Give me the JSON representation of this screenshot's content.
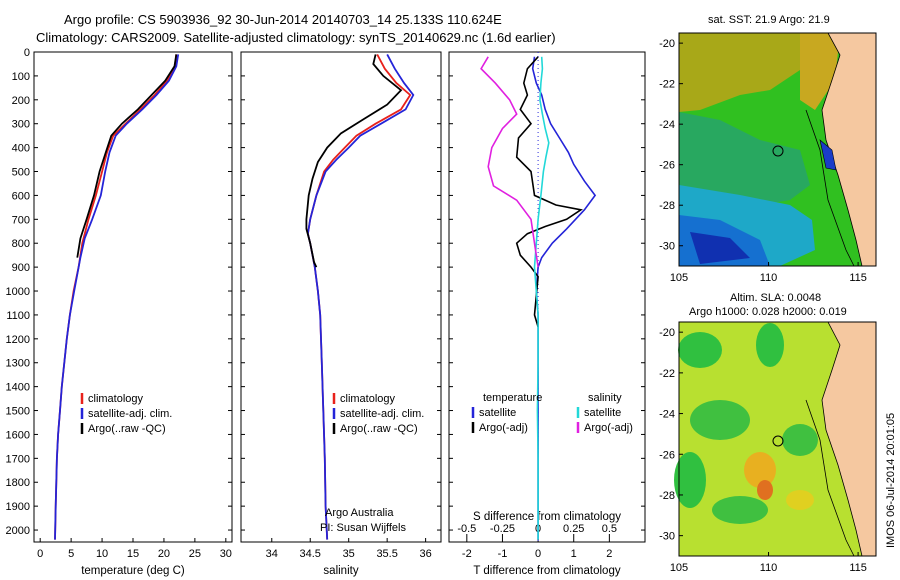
{
  "title_line1": "Argo profile: CS 5903936_92 30-Jun-2014 20140703_14 25.133S 110.624E",
  "title_line2": "Climatology: CARS2009. Satellite-adjusted climatology: synTS_20140629.nc (1.6d earlier)",
  "credit_org": "Argo Australia",
  "credit_pi": "PI: Susan Wijffels",
  "side_stamp": "IMOS 06-Jul-2014 20:01:05",
  "colors": {
    "climatology": "#e8211b",
    "satellite": "#2424d8",
    "argo": "#000000",
    "sal_satellite": "#22d8d8",
    "sal_argo": "#e020e0"
  },
  "chart_data": [
    {
      "type": "line",
      "xlabel": "temperature (deg C)",
      "ylim": [
        2050,
        0
      ],
      "xlim": [
        -1,
        31
      ],
      "xticks": [
        0,
        5,
        10,
        15,
        20,
        25,
        30
      ],
      "yticks": [
        0,
        100,
        200,
        300,
        400,
        500,
        600,
        700,
        800,
        900,
        1000,
        1100,
        1200,
        1300,
        1400,
        1500,
        1600,
        1700,
        1800,
        1900,
        2000
      ],
      "legend": [
        "climatology",
        "satellite-adj. clim.",
        "Argo(..raw -QC)"
      ],
      "series": [
        {
          "name": "climatology",
          "points": [
            [
              22.0,
              10
            ],
            [
              21.8,
              60
            ],
            [
              20.5,
              120
            ],
            [
              18.5,
              180
            ],
            [
              16.2,
              240
            ],
            [
              13.8,
              300
            ],
            [
              11.8,
              350
            ],
            [
              10.8,
              420
            ],
            [
              10.0,
              500
            ],
            [
              9.0,
              600
            ],
            [
              7.8,
              700
            ],
            [
              6.8,
              800
            ],
            [
              6.2,
              900
            ],
            [
              5.4,
              1000
            ],
            [
              4.8,
              1100
            ],
            [
              4.3,
              1200
            ],
            [
              3.9,
              1300
            ],
            [
              3.5,
              1400
            ],
            [
              3.2,
              1500
            ],
            [
              2.9,
              1600
            ],
            [
              2.7,
              1700
            ],
            [
              2.6,
              1800
            ],
            [
              2.5,
              1900
            ],
            [
              2.4,
              2040
            ]
          ]
        },
        {
          "name": "satellite-adj. clim.",
          "points": [
            [
              22.3,
              10
            ],
            [
              22.0,
              60
            ],
            [
              20.8,
              120
            ],
            [
              18.8,
              180
            ],
            [
              16.5,
              240
            ],
            [
              14.0,
              300
            ],
            [
              12.2,
              350
            ],
            [
              11.2,
              420
            ],
            [
              10.5,
              500
            ],
            [
              9.8,
              600
            ],
            [
              8.4,
              700
            ],
            [
              7.2,
              780
            ],
            [
              6.5,
              860
            ],
            [
              5.5,
              1000
            ],
            [
              4.8,
              1100
            ],
            [
              4.3,
              1200
            ],
            [
              3.9,
              1300
            ],
            [
              3.5,
              1400
            ],
            [
              3.2,
              1500
            ],
            [
              2.9,
              1600
            ],
            [
              2.7,
              1700
            ],
            [
              2.6,
              1800
            ],
            [
              2.5,
              1900
            ],
            [
              2.4,
              2040
            ]
          ]
        },
        {
          "name": "Argo(..raw -QC)",
          "points": [
            [
              22.0,
              10
            ],
            [
              21.7,
              60
            ],
            [
              20.2,
              120
            ],
            [
              18.0,
              180
            ],
            [
              15.8,
              240
            ],
            [
              13.2,
              300
            ],
            [
              11.5,
              350
            ],
            [
              10.6,
              420
            ],
            [
              9.6,
              500
            ],
            [
              8.7,
              600
            ],
            [
              7.5,
              700
            ],
            [
              6.5,
              780
            ],
            [
              6.0,
              860
            ]
          ]
        }
      ]
    },
    {
      "type": "line",
      "xlabel": "salinity",
      "ylim": [
        2050,
        0
      ],
      "xlim": [
        33.6,
        36.2
      ],
      "xticks": [
        34,
        34.5,
        35,
        35.5,
        36
      ],
      "legend": [
        "climatology",
        "satellite-adj. clim.",
        "Argo(..raw -QC)"
      ],
      "series": [
        {
          "name": "climatology",
          "points": [
            [
              35.37,
              10
            ],
            [
              35.47,
              70
            ],
            [
              35.62,
              130
            ],
            [
              35.8,
              180
            ],
            [
              35.68,
              240
            ],
            [
              35.35,
              300
            ],
            [
              35.1,
              350
            ],
            [
              34.95,
              400
            ],
            [
              34.8,
              450
            ],
            [
              34.68,
              500
            ],
            [
              34.58,
              600
            ],
            [
              34.5,
              700
            ],
            [
              34.47,
              760
            ],
            [
              34.5,
              800
            ],
            [
              34.56,
              900
            ],
            [
              34.6,
              1000
            ],
            [
              34.63,
              1100
            ],
            [
              34.65,
              1300
            ],
            [
              34.67,
              1500
            ],
            [
              34.69,
              1700
            ],
            [
              34.7,
              1900
            ],
            [
              34.72,
              2040
            ]
          ]
        },
        {
          "name": "satellite-adj. clim.",
          "points": [
            [
              35.5,
              10
            ],
            [
              35.6,
              70
            ],
            [
              35.72,
              130
            ],
            [
              35.84,
              180
            ],
            [
              35.74,
              240
            ],
            [
              35.42,
              300
            ],
            [
              35.15,
              350
            ],
            [
              35.0,
              400
            ],
            [
              34.84,
              450
            ],
            [
              34.7,
              500
            ],
            [
              34.58,
              600
            ],
            [
              34.5,
              700
            ],
            [
              34.47,
              760
            ],
            [
              34.5,
              800
            ],
            [
              34.56,
              900
            ],
            [
              34.6,
              1000
            ],
            [
              34.63,
              1100
            ],
            [
              34.65,
              1300
            ],
            [
              34.67,
              1500
            ],
            [
              34.69,
              1700
            ],
            [
              34.7,
              1900
            ],
            [
              34.72,
              2040
            ]
          ]
        },
        {
          "name": "Argo(..raw -QC)",
          "points": [
            [
              35.35,
              10
            ],
            [
              35.32,
              50
            ],
            [
              35.45,
              100
            ],
            [
              35.68,
              160
            ],
            [
              35.5,
              220
            ],
            [
              35.2,
              280
            ],
            [
              34.9,
              340
            ],
            [
              34.72,
              400
            ],
            [
              34.6,
              460
            ],
            [
              34.53,
              530
            ],
            [
              34.48,
              600
            ],
            [
              34.45,
              700
            ],
            [
              34.45,
              740
            ],
            [
              34.5,
              800
            ],
            [
              34.55,
              880
            ],
            [
              34.58,
              900
            ]
          ]
        }
      ]
    },
    {
      "type": "line",
      "xlabel": "T difference from climatology",
      "xlabel_top": "S difference from climatology",
      "ylim": [
        2050,
        0
      ],
      "xlim": [
        -2.5,
        3
      ],
      "xticks": [
        -2,
        -1,
        0,
        1,
        2
      ],
      "xtick_labels": [
        "-2",
        "-1",
        "0",
        "1",
        "2"
      ],
      "top_ticks": [
        -0.5,
        -0.25,
        0,
        0.25,
        0.5
      ],
      "top_tick_labels": [
        "-0.5",
        "-0.25",
        "0",
        "0.25",
        "0.5"
      ],
      "top_scale": 4,
      "legend_groups": [
        {
          "heading": "temperature",
          "items": [
            "satellite",
            "Argo(-adj)"
          ]
        },
        {
          "heading": "salinity",
          "items": [
            "satellite",
            "Argo(-adj)"
          ]
        }
      ],
      "series": [
        {
          "name": "temperature satellite",
          "points": [
            [
              -0.1,
              20
            ],
            [
              -0.15,
              70
            ],
            [
              -0.05,
              130
            ],
            [
              0.1,
              180
            ],
            [
              0.2,
              240
            ],
            [
              0.35,
              300
            ],
            [
              0.6,
              360
            ],
            [
              0.85,
              420
            ],
            [
              1.0,
              470
            ],
            [
              1.3,
              540
            ],
            [
              1.6,
              600
            ],
            [
              1.3,
              660
            ],
            [
              0.8,
              740
            ],
            [
              0.4,
              800
            ],
            [
              0.1,
              860
            ],
            [
              0.0,
              900
            ],
            [
              -0.05,
              1000
            ],
            [
              0.0,
              1100
            ],
            [
              0.0,
              1200
            ],
            [
              0.0,
              2040
            ]
          ]
        },
        {
          "name": "temperature Argo(-adj)",
          "points": [
            [
              0.0,
              20
            ],
            [
              -0.3,
              70
            ],
            [
              -0.4,
              130
            ],
            [
              -0.3,
              180
            ],
            [
              -0.5,
              240
            ],
            [
              -0.2,
              300
            ],
            [
              -0.55,
              360
            ],
            [
              -0.6,
              440
            ],
            [
              -0.2,
              500
            ],
            [
              -0.1,
              600
            ],
            [
              0.5,
              640
            ],
            [
              1.2,
              660
            ],
            [
              0.8,
              700
            ],
            [
              0.2,
              730
            ],
            [
              -0.3,
              760
            ],
            [
              -0.6,
              800
            ],
            [
              -0.5,
              850
            ],
            [
              -0.2,
              900
            ],
            [
              0.0,
              940
            ],
            [
              -0.1,
              1100
            ],
            [
              0.0,
              1150
            ]
          ]
        },
        {
          "name": "salinity satellite",
          "points": [
            [
              0.1,
              20
            ],
            [
              0.12,
              70
            ],
            [
              0.08,
              130
            ],
            [
              0.05,
              200
            ],
            [
              0.12,
              260
            ],
            [
              0.2,
              320
            ],
            [
              0.3,
              380
            ],
            [
              0.22,
              440
            ],
            [
              0.15,
              500
            ],
            [
              0.08,
              600
            ],
            [
              0.0,
              700
            ],
            [
              -0.05,
              800
            ],
            [
              -0.1,
              900
            ],
            [
              -0.05,
              1000
            ],
            [
              0.0,
              1100
            ],
            [
              0.0,
              1300
            ],
            [
              -0.02,
              1500
            ],
            [
              0.0,
              1700
            ],
            [
              0.0,
              2040
            ]
          ]
        },
        {
          "name": "salinity Argo(-adj)",
          "points": [
            [
              -1.4,
              20
            ],
            [
              -1.6,
              70
            ],
            [
              -1.2,
              130
            ],
            [
              -0.8,
              200
            ],
            [
              -0.6,
              260
            ],
            [
              -1.0,
              320
            ],
            [
              -1.3,
              400
            ],
            [
              -1.4,
              480
            ],
            [
              -1.25,
              560
            ],
            [
              -0.6,
              620
            ],
            [
              -0.2,
              700
            ],
            [
              -0.1,
              800
            ],
            [
              0.0,
              900
            ]
          ]
        }
      ]
    }
  ],
  "maps": [
    {
      "title": "sat. SST: 21.9 Argo: 21.9",
      "xticks": [
        105,
        110,
        115
      ],
      "yticks": [
        -20,
        -22,
        -24,
        -26,
        -28,
        -30
      ],
      "lon_range": [
        105,
        116
      ],
      "lat_range": [
        -19.5,
        -31
      ]
    },
    {
      "title": "Altim. SLA: 0.0048",
      "subtitle": "Argo h1000: 0.028 h2000: 0.019",
      "xticks": [
        105,
        110,
        115
      ],
      "yticks": [
        -20,
        -22,
        -24,
        -26,
        -28,
        -30
      ],
      "lon_range": [
        105,
        116
      ],
      "lat_range": [
        -19.5,
        -31
      ]
    }
  ]
}
